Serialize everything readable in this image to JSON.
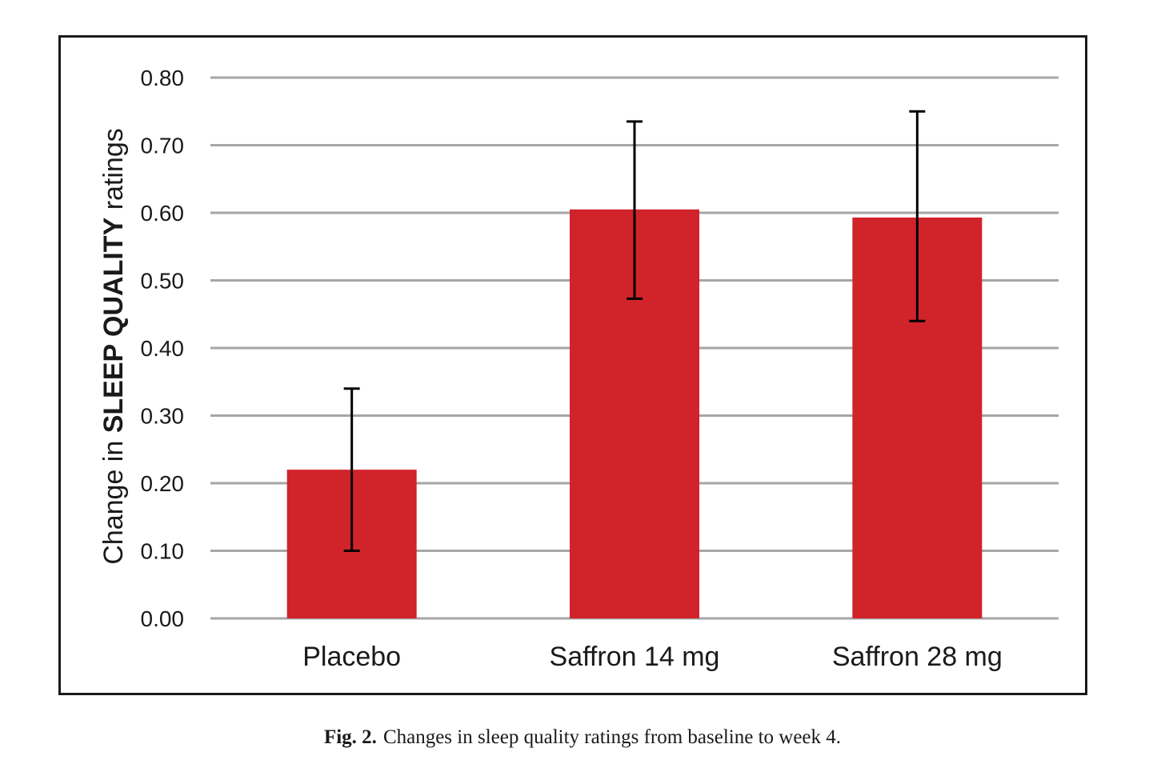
{
  "chart_data": {
    "type": "bar",
    "categories": [
      "Placebo",
      "Saffron 14 mg",
      "Saffron 28 mg"
    ],
    "values": [
      0.22,
      0.605,
      0.593
    ],
    "error_bars": {
      "upper": [
        0.34,
        0.735,
        0.75
      ],
      "lower": [
        0.1,
        0.473,
        0.44
      ]
    },
    "ylabel": {
      "prefix": "Change in ",
      "emphasis": "SLEEP QUALITY",
      "suffix": " ratings"
    },
    "xlabel": "",
    "ylim": [
      0,
      0.8
    ],
    "yticks": [
      "0.00",
      "0.10",
      "0.20",
      "0.30",
      "0.40",
      "0.50",
      "0.60",
      "0.70",
      "0.80"
    ],
    "grid": true,
    "bar_color": "#d1232a",
    "grid_color": "#a6a6a6",
    "error_bar_color": "#000000"
  },
  "caption": {
    "label": "Fig. 2.",
    "text": "Changes in sleep quality ratings from baseline to week 4."
  }
}
